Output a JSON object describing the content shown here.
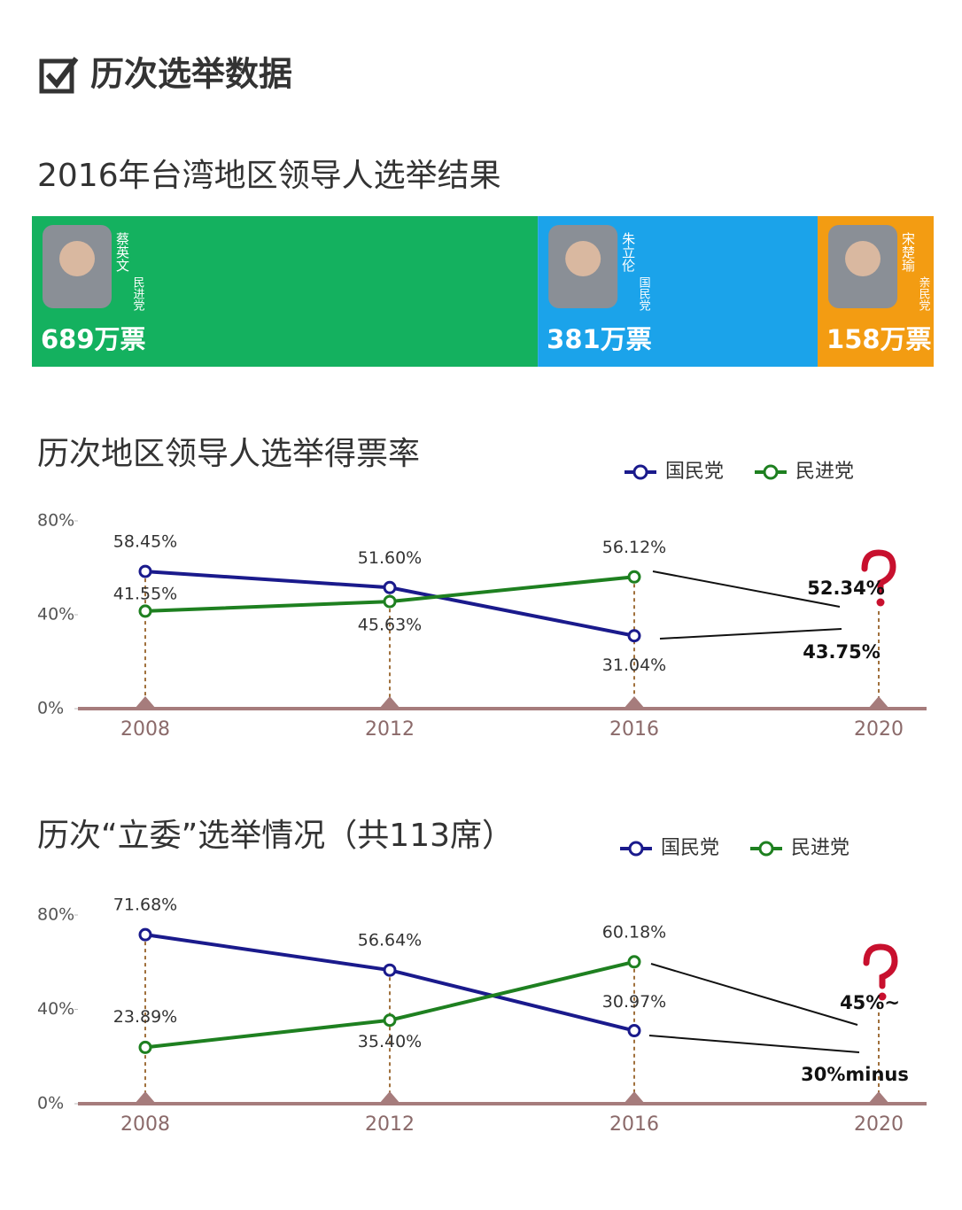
{
  "header": {
    "title": "历次选举数据"
  },
  "chart_data": [
    {
      "type": "stacked_bar",
      "title": "2016年台湾地区领导人选举结果",
      "categories": [
        "蔡英文",
        "朱立伦",
        "宋楚瑜"
      ],
      "parties": [
        "民进党",
        "国民党",
        "亲民党"
      ],
      "values": [
        689,
        381,
        158
      ],
      "value_labels": [
        "689万票",
        "381万票",
        "158万票"
      ],
      "colors": [
        "#14b15f",
        "#1ba3ea",
        "#f39c12"
      ]
    },
    {
      "type": "line",
      "title": "历次地区领导人选举得票率",
      "categories": [
        "2008",
        "2012",
        "2016",
        "2020"
      ],
      "ylim": [
        0,
        80
      ],
      "yticks": [
        {
          "value": 0,
          "label": "0%"
        },
        {
          "value": 40,
          "label": "40%"
        },
        {
          "value": 80,
          "label": "80%"
        }
      ],
      "series": [
        {
          "name": "国民党",
          "color": "#1a1a8c",
          "values": [
            58.45,
            51.6,
            31.04,
            null
          ],
          "value_labels": [
            "58.45%",
            "51.60%",
            "31.04%",
            null
          ]
        },
        {
          "name": "民进党",
          "color": "#1e8020",
          "values": [
            41.55,
            45.63,
            56.12,
            null
          ],
          "value_labels": [
            "41.55%",
            "45.63%",
            "56.12%",
            null
          ]
        }
      ],
      "annotations": [
        "52.34%",
        "43.75%"
      ]
    },
    {
      "type": "line",
      "title": "历次“立委”选举情况（共113席）",
      "categories": [
        "2008",
        "2012",
        "2016",
        "2020"
      ],
      "ylim": [
        0,
        80
      ],
      "yticks": [
        {
          "value": 0,
          "label": "0%"
        },
        {
          "value": 40,
          "label": "40%"
        },
        {
          "value": 80,
          "label": "80%"
        }
      ],
      "series": [
        {
          "name": "国民党",
          "color": "#1a1a8c",
          "values": [
            71.68,
            56.64,
            30.97,
            null
          ],
          "value_labels": [
            "71.68%",
            "56.64%",
            "30.97%",
            null
          ]
        },
        {
          "name": "民进党",
          "color": "#1e8020",
          "values": [
            23.89,
            35.4,
            60.18,
            null
          ],
          "value_labels": [
            "23.89%",
            "35.40%",
            "60.18%",
            null
          ]
        }
      ],
      "annotations": [
        "45%~",
        "30%minus"
      ]
    }
  ]
}
